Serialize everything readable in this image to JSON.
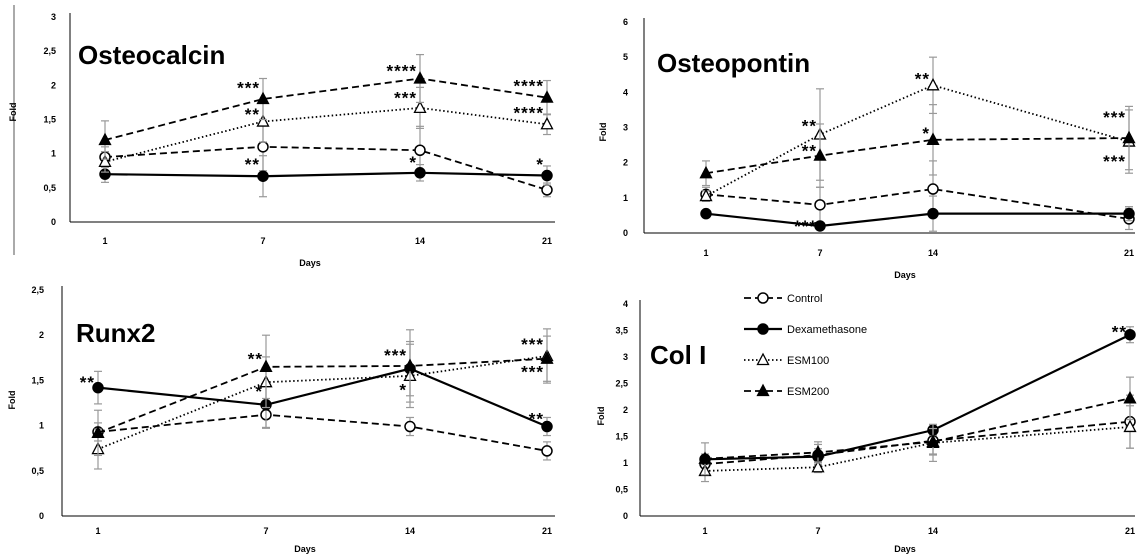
{
  "chart_data": [
    {
      "type": "line",
      "title": "Osteocalcin",
      "xlabel": "Days",
      "ylabel": "Fold",
      "categories": [
        "1",
        "7",
        "14",
        "21"
      ],
      "ylim": [
        0,
        3
      ],
      "yticks": [
        "0",
        "0,5",
        "1",
        "1,5",
        "2",
        "2,5",
        "3"
      ],
      "series": [
        {
          "key": "control",
          "values": [
            0.95,
            1.1,
            1.05,
            0.47
          ],
          "errors": [
            0.15,
            0.35,
            0.35,
            0.1
          ]
        },
        {
          "key": "dex",
          "values": [
            0.7,
            0.67,
            0.72,
            0.68
          ],
          "errors": [
            0.12,
            0.3,
            0.12,
            0.14
          ]
        },
        {
          "key": "esm100",
          "values": [
            0.88,
            1.47,
            1.67,
            1.43
          ],
          "errors": [
            0.15,
            0.3,
            0.3,
            0.15
          ]
        },
        {
          "key": "esm200",
          "values": [
            1.2,
            1.8,
            2.1,
            1.82
          ],
          "errors": [
            0.28,
            0.3,
            0.35,
            0.25
          ]
        }
      ],
      "annotations": [
        {
          "text": "***",
          "x": "7",
          "y": 1.97
        },
        {
          "text": "**",
          "x": "7",
          "y": 1.58
        },
        {
          "text": "**",
          "x": "7",
          "y": 0.85
        },
        {
          "text": "****",
          "x": "14",
          "y": 2.22
        },
        {
          "text": "***",
          "x": "14",
          "y": 1.82
        },
        {
          "text": "*",
          "x": "14",
          "y": 0.88
        },
        {
          "text": "****",
          "x": "21",
          "y": 2.0
        },
        {
          "text": "****",
          "x": "21",
          "y": 1.6
        },
        {
          "text": "*",
          "x": "21",
          "y": 0.85
        }
      ]
    },
    {
      "type": "line",
      "title": "Osteopontin",
      "xlabel": "Days",
      "ylabel": "Fold",
      "categories": [
        "1",
        "7",
        "14",
        "21"
      ],
      "ylim": [
        0,
        6
      ],
      "yticks": [
        "0",
        "1",
        "2",
        "3",
        "4",
        "5",
        "6"
      ],
      "series": [
        {
          "key": "control",
          "values": [
            1.1,
            0.8,
            1.25,
            0.4
          ],
          "errors": [
            0.2,
            0.5,
            0.8,
            0.3
          ]
        },
        {
          "key": "dex",
          "values": [
            0.55,
            0.2,
            0.55,
            0.55
          ],
          "errors": [
            0.1,
            0.1,
            0.5,
            0.2
          ]
        },
        {
          "key": "esm100",
          "values": [
            1.05,
            2.8,
            4.2,
            2.6
          ],
          "errors": [
            0.15,
            1.3,
            0.8,
            0.9
          ]
        },
        {
          "key": "esm200",
          "values": [
            1.7,
            2.2,
            2.65,
            2.7
          ],
          "errors": [
            0.35,
            0.9,
            1.0,
            0.9
          ]
        }
      ],
      "annotations": [
        {
          "text": "**",
          "x": "7",
          "y": 3.05
        },
        {
          "text": "**",
          "x": "7",
          "y": 2.35
        },
        {
          "text": "***",
          "x": "7",
          "y": 0.2
        },
        {
          "text": "**",
          "x": "14",
          "y": 4.4
        },
        {
          "text": "*",
          "x": "14",
          "y": 2.85
        },
        {
          "text": "***",
          "x": "21",
          "y": 3.3
        },
        {
          "text": "***",
          "x": "21",
          "y": 2.05
        }
      ]
    },
    {
      "type": "line",
      "title": "Runx2",
      "xlabel": "Days",
      "ylabel": "Fold",
      "categories": [
        "1",
        "7",
        "14",
        "21"
      ],
      "ylim": [
        0,
        2.5
      ],
      "yticks": [
        "0",
        "0,5",
        "1",
        "1,5",
        "2",
        "2,5"
      ],
      "series": [
        {
          "key": "control",
          "values": [
            0.93,
            1.12,
            0.99,
            0.72
          ],
          "errors": [
            0.1,
            0.15,
            0.1,
            0.1
          ]
        },
        {
          "key": "dex",
          "values": [
            1.42,
            1.23,
            1.63,
            0.99
          ],
          "errors": [
            0.18,
            0.25,
            0.3,
            0.1
          ]
        },
        {
          "key": "esm100",
          "values": [
            0.74,
            1.48,
            1.55,
            1.77
          ],
          "errors": [
            0.22,
            0.28,
            0.35,
            0.3
          ]
        },
        {
          "key": "esm200",
          "values": [
            0.92,
            1.65,
            1.66,
            1.74
          ],
          "errors": [
            0.25,
            0.35,
            0.4,
            0.25
          ]
        }
      ],
      "annotations": [
        {
          "text": "**",
          "x": "1",
          "y": 1.48
        },
        {
          "text": "**",
          "x": "7",
          "y": 1.74
        },
        {
          "text": "*",
          "x": "7",
          "y": 1.38
        },
        {
          "text": "***",
          "x": "14",
          "y": 1.78
        },
        {
          "text": "*",
          "x": "14",
          "y": 1.4
        },
        {
          "text": "***",
          "x": "21",
          "y": 1.9
        },
        {
          "text": "***",
          "x": "21",
          "y": 1.6
        },
        {
          "text": "**",
          "x": "21",
          "y": 1.08
        }
      ]
    },
    {
      "type": "line",
      "title": "Col I",
      "xlabel": "Days",
      "ylabel": "Fold",
      "categories": [
        "1",
        "7",
        "14",
        "21"
      ],
      "ylim": [
        0,
        4
      ],
      "yticks": [
        "0",
        "0,5",
        "1",
        "1,5",
        "2",
        "2,5",
        "3",
        "3,5",
        "4"
      ],
      "series": [
        {
          "key": "control",
          "values": [
            0.98,
            1.15,
            1.42,
            1.78
          ],
          "errors": [
            0.15,
            0.2,
            0.25,
            0.5
          ]
        },
        {
          "key": "dex",
          "values": [
            1.07,
            1.12,
            1.62,
            3.42
          ],
          "errors": [
            0.1,
            0.15,
            0.1,
            0.15
          ]
        },
        {
          "key": "esm100",
          "values": [
            0.85,
            0.92,
            1.38,
            1.68
          ],
          "errors": [
            0.2,
            0.1,
            0.35,
            0.4
          ]
        },
        {
          "key": "esm200",
          "values": [
            1.08,
            1.2,
            1.4,
            2.22
          ],
          "errors": [
            0.3,
            0.2,
            0.25,
            0.4
          ]
        }
      ],
      "annotations": [
        {
          "text": "**",
          "x": "21",
          "y": 3.48
        }
      ]
    }
  ],
  "legend": [
    {
      "key": "control",
      "label": "Control"
    },
    {
      "key": "dex",
      "label": "Dexamethasone"
    },
    {
      "key": "esm100",
      "label": "ESM100"
    },
    {
      "key": "esm200",
      "label": "ESM200"
    }
  ],
  "series_styles": {
    "control": {
      "marker": "circle-open",
      "line": "dashed",
      "color": "#000000"
    },
    "dex": {
      "marker": "circle-filled",
      "line": "solid",
      "color": "#000000"
    },
    "esm100": {
      "marker": "triangle-open",
      "line": "dotted",
      "color": "#000000"
    },
    "esm200": {
      "marker": "triangle-filled",
      "line": "dashed",
      "color": "#000000"
    }
  },
  "colors": {
    "error_bar": "#999999",
    "axis": "#000000"
  }
}
